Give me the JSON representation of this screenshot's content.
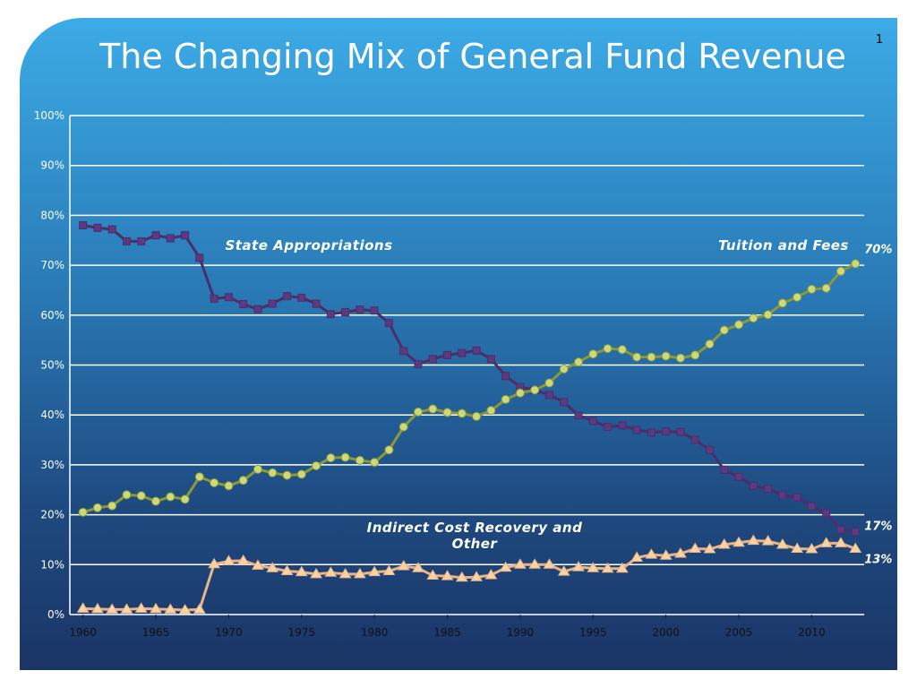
{
  "page_number": "1",
  "chart_data": {
    "type": "line",
    "title": "The Changing Mix of General Fund Revenue",
    "x": [
      1960,
      1961,
      1962,
      1963,
      1964,
      1965,
      1966,
      1967,
      1968,
      1969,
      1970,
      1971,
      1972,
      1973,
      1974,
      1975,
      1976,
      1977,
      1978,
      1979,
      1980,
      1981,
      1982,
      1983,
      1984,
      1985,
      1986,
      1987,
      1988,
      1989,
      1990,
      1991,
      1992,
      1993,
      1994,
      1995,
      1996,
      1997,
      1998,
      1999,
      2000,
      2001,
      2002,
      2003,
      2004,
      2005,
      2006,
      2007,
      2008,
      2009,
      2010,
      2011,
      2012,
      2013
    ],
    "xlim": [
      1959.1,
      2013.6
    ],
    "xticks": [
      1960,
      1965,
      1970,
      1975,
      1980,
      1985,
      1990,
      1995,
      2000,
      2005,
      2010
    ],
    "ylim": [
      0,
      100
    ],
    "yticks": [
      {
        "value": 0,
        "label": "0%"
      },
      {
        "value": 10,
        "label": "10%"
      },
      {
        "value": 20,
        "label": "20%"
      },
      {
        "value": 30,
        "label": "30%"
      },
      {
        "value": 40,
        "label": "40%"
      },
      {
        "value": 50,
        "label": "50%"
      },
      {
        "value": 60,
        "label": "60%"
      },
      {
        "value": 70,
        "label": "70%"
      },
      {
        "value": 80,
        "label": "80%"
      },
      {
        "value": 90,
        "label": "90%"
      },
      {
        "value": 100,
        "label": "100%"
      }
    ],
    "grid": true,
    "series": [
      {
        "name": "State Appropriations",
        "color": "#4a2d6a",
        "marker": "square",
        "marker_color": "#5b3a80",
        "end_label": "17%",
        "values": [
          78,
          77.5,
          77.2,
          74.8,
          74.8,
          76,
          75.4,
          76,
          71.5,
          63.3,
          63.6,
          62.2,
          61.2,
          62.3,
          63.8,
          63.5,
          62.3,
          60.2,
          60.6,
          61.1,
          60.9,
          58.4,
          52.8,
          50.2,
          51.2,
          52,
          52.4,
          52.9,
          51.2,
          47.8,
          45.6,
          45,
          44,
          42.6,
          39.9,
          38.8,
          37.6,
          37.9,
          37,
          36.5,
          36.7,
          36.6,
          35,
          33,
          29,
          27.6,
          25.8,
          25.2,
          23.9,
          23.5,
          21.7,
          20.3,
          17,
          16.6
        ]
      },
      {
        "name": "Tuition and Fees",
        "color": "#8a9a38",
        "marker": "circle",
        "marker_color": "#cdd87c",
        "end_label": "70%",
        "values": [
          20.5,
          21.4,
          21.8,
          24,
          23.8,
          22.7,
          23.6,
          23.1,
          27.6,
          26.4,
          25.8,
          26.9,
          29.1,
          28.4,
          27.9,
          28.1,
          29.8,
          31.4,
          31.5,
          30.9,
          30.5,
          33,
          37.6,
          40.6,
          41.2,
          40.5,
          40.3,
          39.7,
          40.9,
          43.1,
          44.4,
          45,
          46.4,
          49.2,
          50.6,
          52.2,
          53.3,
          53.1,
          51.6,
          51.6,
          51.8,
          51.4,
          52,
          54.2,
          57,
          58.1,
          59.4,
          60.1,
          62.4,
          63.6,
          65.2,
          65.4,
          68.8,
          70.3
        ]
      },
      {
        "name": "Indirect Cost Recovery and Other",
        "color": "#e9b487",
        "marker": "triangle",
        "marker_color": "#f7d3a6",
        "end_label": "13%",
        "values": [
          1.2,
          1.1,
          1,
          1,
          1.2,
          1.1,
          1,
          0.9,
          1,
          10.1,
          10.7,
          10.8,
          9.8,
          9.3,
          8.7,
          8.5,
          8.1,
          8.4,
          8.1,
          8.1,
          8.5,
          8.7,
          9.7,
          9.3,
          7.8,
          7.7,
          7.4,
          7.5,
          7.9,
          9.4,
          10,
          10,
          10,
          8.6,
          9.5,
          9.3,
          9.2,
          9.2,
          11.4,
          12,
          11.8,
          12.2,
          13.2,
          13.1,
          14,
          14.4,
          14.8,
          14.7,
          14,
          13.2,
          13.1,
          14.3,
          14.3,
          13.2
        ]
      }
    ]
  }
}
